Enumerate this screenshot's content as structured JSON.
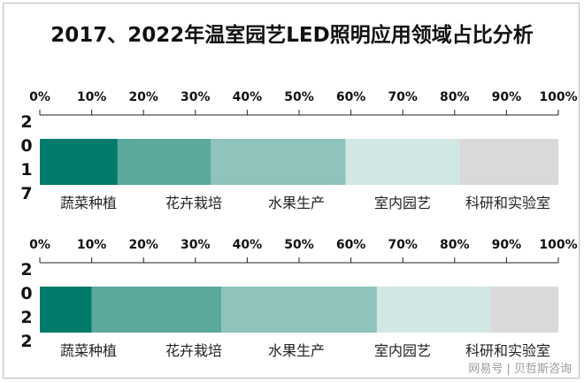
{
  "chart_data": [
    {
      "type": "bar",
      "stacked": true,
      "orientation": "horizontal",
      "title": "2017、2022年温室园艺LED照明应用领域占比分析",
      "category": "2017",
      "categories": [
        "蔬菜种植",
        "花卉栽培",
        "水果生产",
        "室内园艺",
        "科研和实验室"
      ],
      "values": [
        15,
        18,
        26,
        22,
        19
      ],
      "xlim": [
        0,
        100
      ],
      "ticks": [
        "0%",
        "10%",
        "20%",
        "30%",
        "40%",
        "50%",
        "60%",
        "70%",
        "80%",
        "90%",
        "100%"
      ],
      "grid": false
    },
    {
      "type": "bar",
      "stacked": true,
      "orientation": "horizontal",
      "category": "2022",
      "categories": [
        "蔬菜种植",
        "花卉栽培",
        "水果生产",
        "室内园艺",
        "科研和实验室"
      ],
      "values": [
        10,
        25,
        30,
        22,
        13
      ],
      "xlim": [
        0,
        100
      ],
      "ticks": [
        "0%",
        "10%",
        "20%",
        "30%",
        "40%",
        "50%",
        "60%",
        "70%",
        "80%",
        "90%",
        "100%"
      ],
      "grid": false
    }
  ],
  "colors": [
    "#007a6a",
    "#5ba89d",
    "#8fc3bb",
    "#d1e7e4",
    "#d9d9d9"
  ],
  "watermark": "网易号 | 贝哲斯咨询"
}
